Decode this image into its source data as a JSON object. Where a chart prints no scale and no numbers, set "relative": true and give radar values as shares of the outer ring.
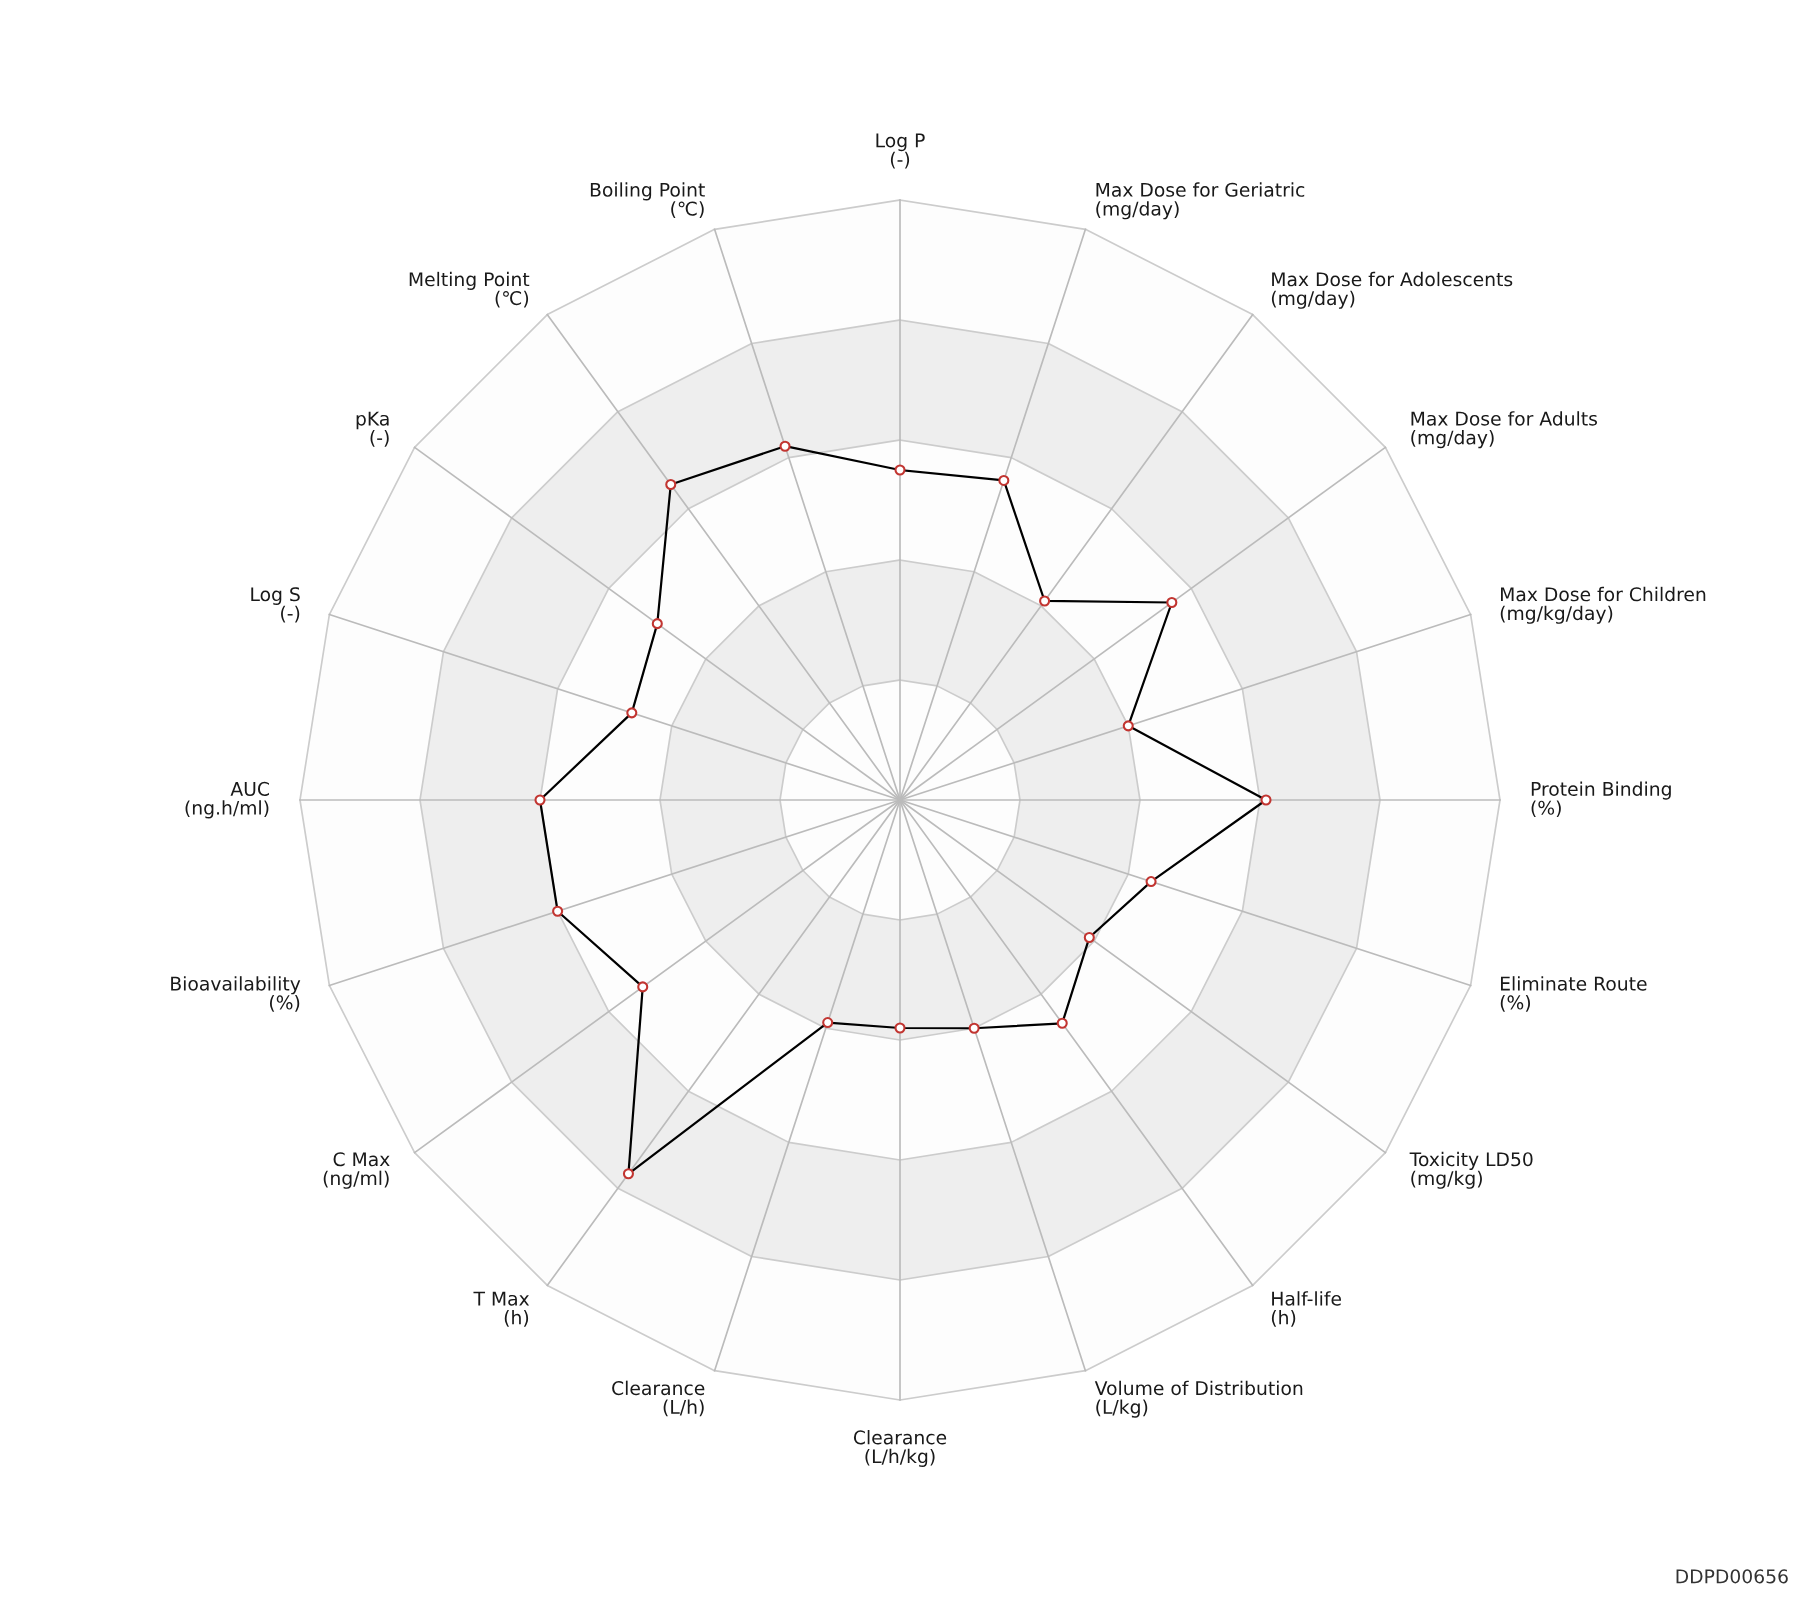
{
  "chart_data": {
    "type": "radar",
    "relative": true,
    "grid": true,
    "marker": "circle",
    "line_style": "solid",
    "categories": [
      "Log P\n(-)",
      "Max Dose for Geriatric\n(mg/day)",
      "Max Dose for Adolescents\n(mg/day)",
      "Max Dose for Adults\n(mg/day)",
      "Max Dose for Children\n(mg/kg/day)",
      "Protein Binding\n(%)",
      "Eliminate Route\n(%)",
      "Toxicity LD50\n(mg/kg)",
      "Half-life\n(h)",
      "Volume of Distribution\n(L/kg)",
      "Clearance\n(L/h/kg)",
      "Clearance\n(L/h)",
      "T Max\n(h)",
      "C Max\n(ng/ml)",
      "Bioavailability\n(%)",
      "AUC\n(ng.h/ml)",
      "Log S\n(-)",
      "pKa\n(-)",
      "Melting Point\n(℃)",
      "Boiling Point\n(℃)"
    ],
    "series": [
      {
        "color": "#000000",
        "colors": [
          "#c23531",
          "#c23531",
          "#c23531",
          "#c23531",
          "#c23531",
          "#c23531",
          "#c23531",
          "#c23531",
          "#c23531",
          "#c23531",
          "#c23531",
          "#c23531",
          "#c23531",
          "#c23531",
          "#c23531",
          "#c23531",
          "#c23531",
          "#c23531",
          "#c23531",
          "#c23531"
        ],
        "values": [
          0.55,
          0.56,
          0.41,
          0.56,
          0.4,
          0.61,
          0.44,
          0.39,
          0.46,
          0.4,
          0.38,
          0.39,
          0.77,
          0.53,
          0.6,
          0.6,
          0.47,
          0.5,
          0.65,
          0.62
        ]
      }
    ],
    "annotations": [
      "DDPD00656"
    ]
  }
}
